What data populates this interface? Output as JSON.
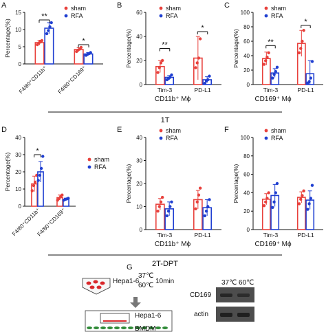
{
  "colors": {
    "sham": "#e8413c",
    "rfa": "#1f3fd1",
    "text": "#111111",
    "gel_dark": "#4d4d4d",
    "gel_band": "#262626",
    "dish_red": "#d9282b",
    "cell_green": "#2e8a36"
  },
  "legend": {
    "sham": "sham",
    "rfa": "RFA"
  },
  "labels": {
    "ylabel": "Percentage(%)",
    "x_A": [
      "F4/80⁺CD11b⁺",
      "F4/80⁺CD169⁺"
    ],
    "x_B": [
      "Tim-3",
      "PD-L1"
    ],
    "x_C": [
      "Tim-3",
      "PD-L1"
    ],
    "x_D": [
      "F4/80⁺CD11b⁺",
      "F4/80⁺CD169⁺"
    ],
    "x_E": [
      "Tim-3",
      "PD-L1"
    ],
    "x_F": [
      "Tim-3",
      "PD-L1"
    ],
    "group_B": "CD11b⁺ Mϕ",
    "group_C": "CD169⁺ Mϕ",
    "group_E": "CD11b⁺ Mϕ",
    "group_F": "CD169⁺ Mϕ",
    "timepoint_top": "1T",
    "timepoint_mid": "2T-DPT"
  },
  "panel_letters": {
    "A": "A",
    "B": "B",
    "C": "C",
    "D": "D",
    "E": "E",
    "F": "F",
    "G": "G"
  },
  "chart_data": [
    {
      "panel": "A",
      "type": "bar",
      "ylabel": "Percentage(%)",
      "ylim": [
        0,
        15
      ],
      "yticks": [
        0,
        5,
        10,
        15
      ],
      "categories": [
        "F4/80+CD11b+",
        "F4/80+CD169+"
      ],
      "series": [
        {
          "name": "sham",
          "values": [
            6.2,
            4.2
          ],
          "sd": [
            0.7,
            0.5
          ],
          "points": [
            [
              5.6,
              6.1,
              6.4,
              6.8
            ],
            [
              3.6,
              4.0,
              4.3,
              4.8
            ]
          ]
        },
        {
          "name": "RFA",
          "values": [
            10.4,
            2.9
          ],
          "sd": [
            1.6,
            0.4
          ],
          "points": [
            [
              8.8,
              9.7,
              10.8,
              12.0
            ],
            [
              2.5,
              2.8,
              3.0,
              3.3
            ]
          ]
        }
      ],
      "significance": [
        {
          "category": 0,
          "label": "**",
          "y": 12.8
        },
        {
          "category": 1,
          "label": "*",
          "y": 5.6
        }
      ]
    },
    {
      "panel": "B",
      "type": "bar",
      "ylabel": "Percentage(%)",
      "ylim": [
        0,
        60
      ],
      "yticks": [
        0,
        20,
        40,
        60
      ],
      "categories": [
        "Tim-3",
        "PD-L1"
      ],
      "series": [
        {
          "name": "sham",
          "values": [
            15,
            22
          ],
          "sd": [
            5,
            18
          ],
          "points": [
            [
              10,
              14,
              18,
              20
            ],
            [
              14,
              18,
              22,
              38
            ]
          ]
        },
        {
          "name": "RFA",
          "values": [
            6,
            4
          ],
          "sd": [
            1.5,
            2.5
          ],
          "points": [
            [
              4,
              5,
              6,
              8
            ],
            [
              1,
              3,
              4,
              7
            ]
          ]
        }
      ],
      "significance": [
        {
          "category": 0,
          "label": "**",
          "y": 30
        },
        {
          "category": 1,
          "label": "*",
          "y": 44
        }
      ]
    },
    {
      "panel": "C",
      "type": "bar",
      "ylabel": "Percentage(%)",
      "ylim": [
        0,
        100
      ],
      "yticks": [
        0,
        20,
        40,
        60,
        80,
        100
      ],
      "categories": [
        "Tim-3",
        "PD-L1"
      ],
      "series": [
        {
          "name": "sham",
          "values": [
            36,
            57
          ],
          "sd": [
            9,
            18
          ],
          "points": [
            [
              28,
              33,
              38,
              44
            ],
            [
              44,
              50,
              60,
              75
            ]
          ]
        },
        {
          "name": "RFA",
          "values": [
            16,
            15
          ],
          "sd": [
            6,
            18
          ],
          "points": [
            [
              9,
              14,
              18,
              24
            ],
            [
              2,
              4,
              9,
              32
            ]
          ]
        }
      ],
      "significance": [
        {
          "category": 0,
          "label": "**",
          "y": 54
        },
        {
          "category": 1,
          "label": "*",
          "y": 82
        }
      ]
    },
    {
      "panel": "D",
      "type": "bar",
      "ylabel": "Percentage(%)",
      "ylim": [
        0,
        40
      ],
      "yticks": [
        0,
        10,
        20,
        30,
        40
      ],
      "categories": [
        "F4/80+CD11b+",
        "F4/80+CD169+"
      ],
      "series": [
        {
          "name": "sham",
          "values": [
            13,
            5
          ],
          "sd": [
            4.5,
            1.5
          ],
          "points": [
            [
              9,
              12,
              14,
              18
            ],
            [
              3.5,
              4.5,
              5.5,
              6.5
            ]
          ]
        },
        {
          "name": "RFA",
          "values": [
            20,
            4
          ],
          "sd": [
            6,
            0.7
          ],
          "points": [
            [
              15,
              18,
              22,
              29
            ],
            [
              3.5,
              4,
              4.2,
              4.6
            ]
          ]
        }
      ],
      "significance": [
        {
          "category": 0,
          "label": "*",
          "y": 30
        }
      ]
    },
    {
      "panel": "E",
      "type": "bar",
      "ylabel": "Percentage(%)",
      "ylim": [
        0,
        40
      ],
      "yticks": [
        0,
        10,
        20,
        30,
        40
      ],
      "categories": [
        "Tim-3",
        "PD-L1"
      ],
      "series": [
        {
          "name": "sham",
          "values": [
            11,
            13
          ],
          "sd": [
            2.5,
            4
          ],
          "points": [
            [
              8,
              10,
              12,
              14
            ],
            [
              9,
              12,
              15,
              18
            ]
          ]
        },
        {
          "name": "RFA",
          "values": [
            9,
            9.5
          ],
          "sd": [
            3,
            3.5
          ],
          "points": [
            [
              6,
              8,
              10,
              12
            ],
            [
              6,
              8,
              10,
              13
            ]
          ]
        }
      ],
      "significance": []
    },
    {
      "panel": "F",
      "type": "bar",
      "ylabel": "Percentage(%)",
      "ylim": [
        0,
        100
      ],
      "yticks": [
        0,
        20,
        40,
        60,
        80,
        100
      ],
      "categories": [
        "Tim-3",
        "PD-L1"
      ],
      "series": [
        {
          "name": "sham",
          "values": [
            33,
            35
          ],
          "sd": [
            6,
            6
          ],
          "points": [
            [
              26,
              30,
              34,
              40
            ],
            [
              28,
              33,
              37,
              42
            ]
          ]
        },
        {
          "name": "RFA",
          "values": [
            37,
            32
          ],
          "sd": [
            12,
            10
          ],
          "points": [
            [
              24,
              30,
              40,
              50
            ],
            [
              22,
              28,
              34,
              48
            ]
          ]
        }
      ],
      "significance": []
    }
  ],
  "schematic_G": {
    "cells_label": "Hepa1-6",
    "temp1": "37℃",
    "temp2": "60℃",
    "time": "10min",
    "coculture_label": "Hepa1-6",
    "bmdm_label": "BMDM",
    "gel_header": [
      "37℃",
      "60℃"
    ],
    "gel_rows": [
      "CD169",
      "actin"
    ]
  }
}
